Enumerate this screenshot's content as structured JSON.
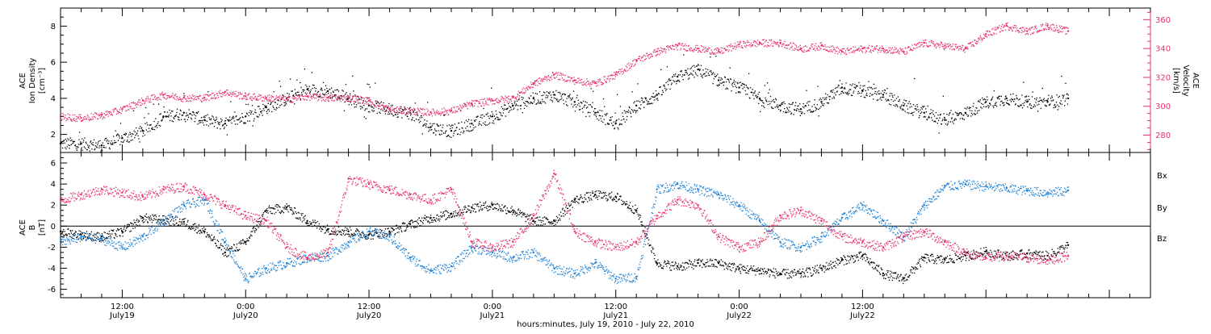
{
  "title": "",
  "footer": "hours:minutes, July 19, 2010 - July 22, 2010",
  "colors": {
    "density": "#000000",
    "velocity": "#e8336a",
    "bx": "#000000",
    "by": "#1a7fd6",
    "bz": "#e8336a"
  },
  "time_axis": {
    "ticks": [
      {
        "hm": "12:00",
        "day": "July19"
      },
      {
        "hm": "0:00",
        "day": "July20"
      },
      {
        "hm": "12:00",
        "day": "July20"
      },
      {
        "hm": "0:00",
        "day": "July21"
      },
      {
        "hm": "12:00",
        "day": "July21"
      },
      {
        "hm": "0:00",
        "day": "July22"
      },
      {
        "hm": "12:00",
        "day": "July22"
      }
    ]
  },
  "panel1": {
    "left_label_lines": [
      "ACE",
      "Ion Density",
      "[cm⁻³]"
    ],
    "right_label_lines": [
      "ACE",
      "Velocity",
      "[km/s]"
    ]
  },
  "panel2": {
    "label_lines": [
      "ACE",
      "B",
      "[nT]"
    ],
    "legend": [
      "Bx",
      "By",
      "Bz"
    ]
  },
  "chart_data": [
    {
      "type": "scatter",
      "subplot": "ion density and solar wind speed",
      "x_unit": "hours since 2010-07-19 00:00",
      "series": [
        {
          "name": "Ion Density",
          "axis": "left",
          "x": [
            6,
            8,
            10,
            12,
            14,
            16,
            18,
            20,
            22,
            24,
            26,
            28,
            30,
            32,
            34,
            36,
            38,
            40,
            42,
            44,
            46,
            48,
            50,
            52,
            54,
            56,
            58,
            60,
            62,
            64,
            66,
            68,
            70,
            72,
            74,
            76,
            78,
            80,
            82,
            84,
            86,
            88,
            90,
            92,
            94,
            96,
            98,
            100,
            102,
            104
          ],
          "y": [
            1.5,
            1.5,
            1.4,
            1.8,
            2.2,
            3.0,
            3.2,
            2.8,
            2.6,
            3.0,
            3.5,
            4.0,
            4.5,
            4.4,
            4.0,
            3.6,
            3.4,
            3.2,
            2.4,
            2.2,
            2.6,
            3.0,
            3.6,
            4.0,
            4.2,
            3.8,
            3.2,
            2.6,
            3.6,
            4.2,
            5.2,
            5.6,
            5.0,
            4.6,
            4.0,
            3.6,
            3.4,
            3.8,
            4.6,
            4.4,
            4.2,
            3.6,
            3.2,
            2.8,
            3.2,
            3.8,
            4.0,
            3.8,
            3.8,
            4.0
          ]
        },
        {
          "name": "Velocity",
          "axis": "right",
          "x": [
            6,
            8,
            10,
            12,
            14,
            16,
            18,
            20,
            22,
            24,
            26,
            28,
            30,
            32,
            34,
            36,
            38,
            40,
            42,
            44,
            46,
            48,
            50,
            52,
            54,
            56,
            58,
            60,
            62,
            64,
            66,
            68,
            70,
            72,
            74,
            76,
            78,
            80,
            82,
            84,
            86,
            88,
            90,
            92,
            94,
            96,
            98,
            100,
            102,
            104
          ],
          "y": [
            293,
            292,
            294,
            298,
            304,
            308,
            306,
            306,
            310,
            307,
            306,
            305,
            307,
            306,
            306,
            304,
            298,
            297,
            296,
            297,
            302,
            304,
            306,
            316,
            322,
            318,
            316,
            322,
            332,
            338,
            342,
            340,
            338,
            343,
            344,
            344,
            340,
            342,
            338,
            340,
            340,
            338,
            344,
            342,
            340,
            350,
            356,
            352,
            356,
            352
          ]
        }
      ],
      "ylim_left": [
        1,
        9
      ],
      "ylim_right": [
        268,
        368
      ],
      "yticks_left": [
        2,
        4,
        6,
        8
      ],
      "yticks_right": [
        280,
        300,
        320,
        340,
        360
      ],
      "xlim": [
        6,
        112
      ]
    },
    {
      "type": "scatter",
      "subplot": "interplanetary magnetic field components",
      "x_unit": "hours since 2010-07-19 00:00",
      "series": [
        {
          "name": "Bx",
          "x": [
            6,
            8,
            10,
            12,
            14,
            16,
            18,
            20,
            22,
            24,
            26,
            28,
            30,
            32,
            34,
            36,
            38,
            40,
            42,
            44,
            46,
            48,
            50,
            52,
            54,
            56,
            58,
            60,
            62,
            64,
            66,
            68,
            70,
            72,
            74,
            76,
            78,
            80,
            82,
            84,
            86,
            88,
            90,
            92,
            94,
            96,
            98,
            100,
            102,
            104
          ],
          "y": [
            -0.5,
            -0.8,
            -1.0,
            -0.5,
            0.8,
            0.6,
            0.4,
            -0.5,
            -2.5,
            -1.5,
            1.5,
            1.8,
            0.5,
            -0.3,
            -0.5,
            -0.8,
            -0.5,
            0.2,
            0.8,
            1.2,
            1.8,
            2.0,
            1.5,
            0.5,
            0.5,
            2.5,
            3.0,
            2.8,
            1.5,
            -3.5,
            -3.8,
            -3.5,
            -3.5,
            -4.0,
            -4.2,
            -4.5,
            -4.5,
            -4.0,
            -3.2,
            -2.8,
            -4.5,
            -5.0,
            -3.0,
            -3.2,
            -2.8,
            -2.4,
            -2.8,
            -2.6,
            -2.8,
            -1.8
          ]
        },
        {
          "name": "By",
          "x": [
            6,
            8,
            10,
            12,
            14,
            16,
            18,
            20,
            22,
            24,
            26,
            28,
            30,
            32,
            34,
            36,
            38,
            40,
            42,
            44,
            46,
            48,
            50,
            52,
            54,
            56,
            58,
            60,
            62,
            64,
            66,
            68,
            70,
            72,
            74,
            76,
            78,
            80,
            82,
            84,
            86,
            88,
            90,
            92,
            94,
            96,
            98,
            100,
            102,
            104
          ],
          "y": [
            -1.5,
            -1.0,
            -1.2,
            -2.0,
            -1.0,
            0.5,
            2.0,
            2.5,
            -1.5,
            -5.0,
            -4.0,
            -3.5,
            -3.0,
            -2.8,
            -1.5,
            -0.5,
            -1.0,
            -3.0,
            -4.2,
            -3.8,
            -2.0,
            -2.5,
            -3.0,
            -2.5,
            -4.0,
            -4.5,
            -3.5,
            -5.0,
            -4.8,
            3.5,
            4.0,
            3.5,
            3.0,
            2.0,
            0.5,
            -1.5,
            -2.0,
            -1.0,
            0.8,
            2.0,
            0.5,
            -1.0,
            2.0,
            3.8,
            4.0,
            3.8,
            3.6,
            3.4,
            3.2,
            3.4
          ]
        },
        {
          "name": "Bz",
          "x": [
            6,
            8,
            10,
            12,
            14,
            16,
            18,
            20,
            22,
            24,
            26,
            28,
            30,
            32,
            34,
            36,
            38,
            40,
            42,
            44,
            46,
            48,
            50,
            52,
            54,
            56,
            58,
            60,
            62,
            64,
            66,
            68,
            70,
            72,
            74,
            76,
            78,
            80,
            82,
            84,
            86,
            88,
            90,
            92,
            94,
            96,
            98,
            100,
            102,
            104
          ],
          "y": [
            2.5,
            3.0,
            3.5,
            3.2,
            2.8,
            3.5,
            3.8,
            3.0,
            2.0,
            1.0,
            0.5,
            -2.0,
            -3.0,
            -2.5,
            4.5,
            4.0,
            3.5,
            3.0,
            2.5,
            3.5,
            -1.5,
            -2.0,
            -1.5,
            1.0,
            5.0,
            -0.5,
            -1.5,
            -2.0,
            -1.5,
            1.0,
            2.5,
            2.0,
            -1.0,
            -2.0,
            -1.5,
            1.0,
            1.5,
            0.5,
            -1.0,
            -1.5,
            -2.0,
            -1.0,
            -0.5,
            -1.5,
            -2.5,
            -3.0,
            -2.8,
            -3.0,
            -3.2,
            -2.8
          ]
        }
      ],
      "ylim": [
        -6.8,
        7
      ],
      "yticks": [
        -6,
        -4,
        -2,
        0,
        2,
        4,
        6
      ],
      "xlim": [
        6,
        112
      ]
    }
  ]
}
